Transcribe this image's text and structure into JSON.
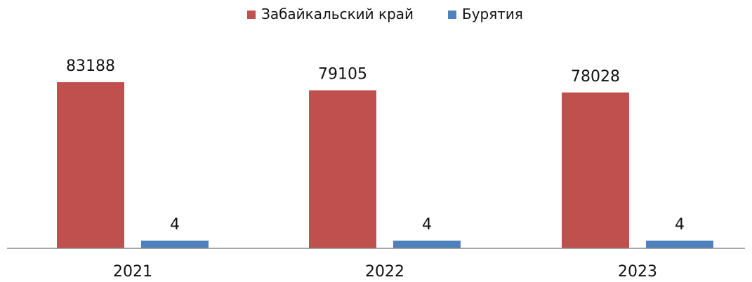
{
  "chart_data": {
    "type": "bar",
    "categories": [
      "2021",
      "2022",
      "2023"
    ],
    "series": [
      {
        "name": "Забайкальский край",
        "values": [
          83188,
          79105,
          78028
        ],
        "color": "#c0504d"
      },
      {
        "name": "Бурятия",
        "values": [
          4,
          4,
          4
        ],
        "color": "#4f81bd"
      }
    ],
    "title": "",
    "xlabel": "",
    "ylabel": "",
    "ylim": [
      0,
      92000
    ],
    "grid": false,
    "legend_position": "top-center",
    "data_labels": true
  }
}
